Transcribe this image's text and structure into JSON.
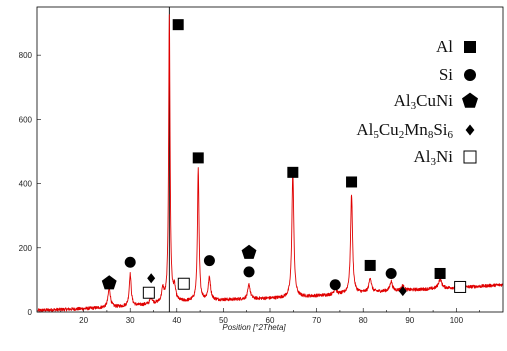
{
  "chart_data": {
    "type": "line",
    "title": "",
    "xlabel": "Position [°2Theta]",
    "ylabel": "",
    "xlim": [
      10,
      110
    ],
    "ylim": [
      0,
      950
    ],
    "x_ticks": [
      "20",
      "30",
      "40",
      "50",
      "60",
      "70",
      "80",
      "90",
      "100"
    ],
    "y_ticks": [
      "0",
      "200",
      "400",
      "600",
      "800"
    ],
    "series_color": "#e00000",
    "grid": false,
    "legend": {
      "placement": "top-right",
      "entries": [
        {
          "label_parts": [
            {
              "t": "Al"
            }
          ],
          "marker": "square-filled"
        },
        {
          "label_parts": [
            {
              "t": "Si"
            }
          ],
          "marker": "circle-filled"
        },
        {
          "label_parts": [
            {
              "t": "Al"
            },
            {
              "t": "3",
              "sub": true
            },
            {
              "t": "CuNi"
            }
          ],
          "marker": "pentagon-filled"
        },
        {
          "label_parts": [
            {
              "t": "Al"
            },
            {
              "t": "5",
              "sub": true
            },
            {
              "t": "Cu"
            },
            {
              "t": "2",
              "sub": true
            },
            {
              "t": "Mn"
            },
            {
              "t": "8",
              "sub": true
            },
            {
              "t": "Si"
            },
            {
              "t": "6",
              "sub": true
            }
          ],
          "marker": "diamond-filled"
        },
        {
          "label_parts": [
            {
              "t": "Al"
            },
            {
              "t": "3",
              "sub": true
            },
            {
              "t": "Ni"
            }
          ],
          "marker": "square-open"
        }
      ]
    },
    "baseline": [
      [
        10,
        5
      ],
      [
        20,
        10
      ],
      [
        30,
        18
      ],
      [
        38,
        28
      ],
      [
        45,
        35
      ],
      [
        55,
        40
      ],
      [
        65,
        45
      ],
      [
        75,
        55
      ],
      [
        85,
        65
      ],
      [
        95,
        72
      ],
      [
        105,
        80
      ],
      [
        110,
        85
      ]
    ],
    "peaks": [
      {
        "x": 25.5,
        "height": 60,
        "width": 0.3
      },
      {
        "x": 30.0,
        "height": 100,
        "width": 0.25
      },
      {
        "x": 34.5,
        "height": 20,
        "width": 0.3
      },
      {
        "x": 37.0,
        "height": 40,
        "width": 0.3
      },
      {
        "x": 38.4,
        "height": 890,
        "width": 0.18
      },
      {
        "x": 39.5,
        "height": 40,
        "width": 0.3
      },
      {
        "x": 44.6,
        "height": 410,
        "width": 0.2
      },
      {
        "x": 47.0,
        "height": 70,
        "width": 0.3
      },
      {
        "x": 55.5,
        "height": 45,
        "width": 0.3
      },
      {
        "x": 64.9,
        "height": 390,
        "width": 0.25
      },
      {
        "x": 74.0,
        "height": 20,
        "width": 0.3
      },
      {
        "x": 77.5,
        "height": 310,
        "width": 0.25
      },
      {
        "x": 81.5,
        "height": 45,
        "width": 0.3
      },
      {
        "x": 86.0,
        "height": 30,
        "width": 0.3
      },
      {
        "x": 88.5,
        "height": 15,
        "width": 0.3
      },
      {
        "x": 96.5,
        "height": 30,
        "width": 0.4
      }
    ],
    "annotations": [
      {
        "phase": "Al",
        "marker": "square-filled",
        "x": 40.3,
        "y": 895
      },
      {
        "phase": "Al",
        "marker": "square-filled",
        "x": 44.6,
        "y": 480
      },
      {
        "phase": "Al",
        "marker": "square-filled",
        "x": 64.9,
        "y": 435
      },
      {
        "phase": "Al",
        "marker": "square-filled",
        "x": 77.5,
        "y": 405
      },
      {
        "phase": "Al",
        "marker": "square-filled",
        "x": 81.5,
        "y": 145
      },
      {
        "phase": "Al",
        "marker": "square-filled",
        "x": 96.5,
        "y": 120
      },
      {
        "phase": "Si",
        "marker": "circle-filled",
        "x": 30.0,
        "y": 155
      },
      {
        "phase": "Si",
        "marker": "circle-filled",
        "x": 47.0,
        "y": 160
      },
      {
        "phase": "Si",
        "marker": "circle-filled",
        "x": 55.5,
        "y": 125
      },
      {
        "phase": "Si",
        "marker": "circle-filled",
        "x": 74.0,
        "y": 85
      },
      {
        "phase": "Si",
        "marker": "circle-filled",
        "x": 86.0,
        "y": 120
      },
      {
        "phase": "Al3CuNi",
        "marker": "pentagon-filled",
        "x": 25.5,
        "y": 90
      },
      {
        "phase": "Al3CuNi",
        "marker": "pentagon-filled",
        "x": 55.5,
        "y": 185
      },
      {
        "phase": "Al5Cu2Mn8Si6",
        "marker": "diamond-filled",
        "x": 34.5,
        "y": 105
      },
      {
        "phase": "Al5Cu2Mn8Si6",
        "marker": "diamond-filled",
        "x": 88.5,
        "y": 65
      },
      {
        "phase": "Al3Ni",
        "marker": "square-open",
        "x": 34.0,
        "y": 60
      },
      {
        "phase": "Al3Ni",
        "marker": "square-open",
        "x": 41.5,
        "y": 88
      },
      {
        "phase": "Al3Ni",
        "marker": "square-open",
        "x": 100.8,
        "y": 78
      }
    ]
  }
}
